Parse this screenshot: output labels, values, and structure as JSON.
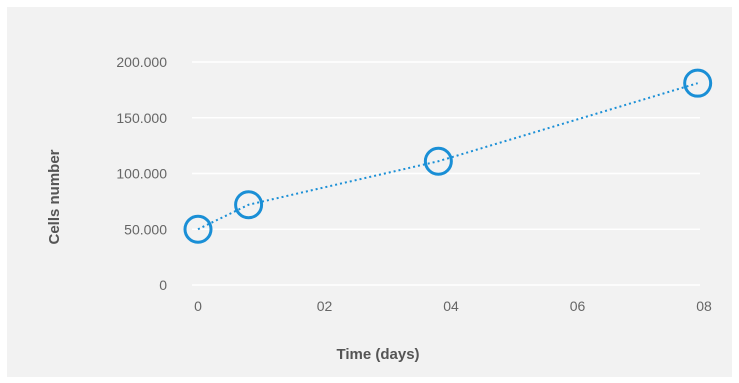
{
  "chart_data": {
    "type": "scatter",
    "title": "",
    "xlabel": "Time (days)",
    "ylabel": "Cells number",
    "x_ticks": [
      "0",
      "02",
      "04",
      "06",
      "08"
    ],
    "x_tick_values": [
      0,
      2,
      4,
      6,
      8
    ],
    "y_ticks": [
      "0",
      "50.000",
      "100.000",
      "150.000",
      "200.000"
    ],
    "y_tick_values": [
      0,
      50000,
      100000,
      150000,
      200000
    ],
    "xlim": [
      0,
      8
    ],
    "ylim": [
      0,
      200000
    ],
    "grid": "horizontal",
    "legend": "none",
    "series": [
      {
        "x": [
          0,
          0.8,
          3.8,
          7.9
        ],
        "y": [
          50000,
          72000,
          111000,
          181000
        ],
        "color": "#1a8fd6",
        "marker": "open-circle",
        "line": "dotted"
      }
    ]
  }
}
